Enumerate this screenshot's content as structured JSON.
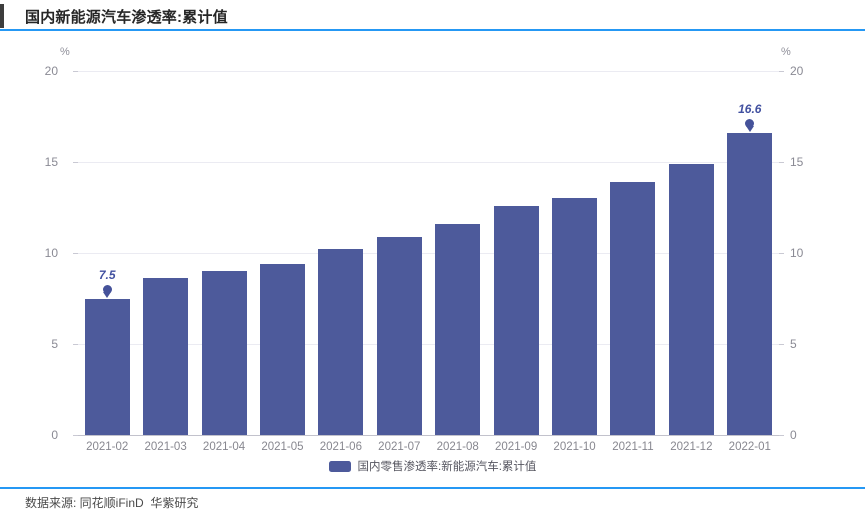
{
  "header": {
    "title": "国内新能源汽车渗透率:累计值"
  },
  "chart_data": {
    "type": "bar",
    "title": "国内新能源汽车渗透率:累计值",
    "categories": [
      "2021-02",
      "2021-03",
      "2021-04",
      "2021-05",
      "2021-06",
      "2021-07",
      "2021-08",
      "2021-09",
      "2021-10",
      "2021-11",
      "2021-12",
      "2022-01"
    ],
    "series": [
      {
        "name": "国内零售渗透率:新能源汽车:累计值",
        "values": [
          7.5,
          8.6,
          9.0,
          9.4,
          10.2,
          10.9,
          11.6,
          12.6,
          13.0,
          13.9,
          14.9,
          16.6
        ]
      }
    ],
    "xlabel": "",
    "ylabel": "%",
    "y_axis_unit": "%",
    "ylim": [
      0,
      20
    ],
    "yticks": [
      0,
      5,
      10,
      15,
      20
    ],
    "grid": true,
    "legend_position": "bottom",
    "bar_color": "#4d5a9b",
    "annotations": [
      {
        "index": 0,
        "category": "2021-02",
        "text": "7.5"
      },
      {
        "index": 11,
        "category": "2022-01",
        "text": "16.6"
      }
    ]
  },
  "legend": {
    "label": "国内零售渗透率:新能源汽车:累计值",
    "swatch_color": "#4d5a9b"
  },
  "footer": {
    "source": "数据来源: 同花顺iFinD  华紫研究"
  },
  "colors": {
    "accent_blue": "#2598f4",
    "bar": "#4d5a9b",
    "pin": "#45529a",
    "axis_text": "#8a8a94",
    "title_text": "#262626"
  }
}
